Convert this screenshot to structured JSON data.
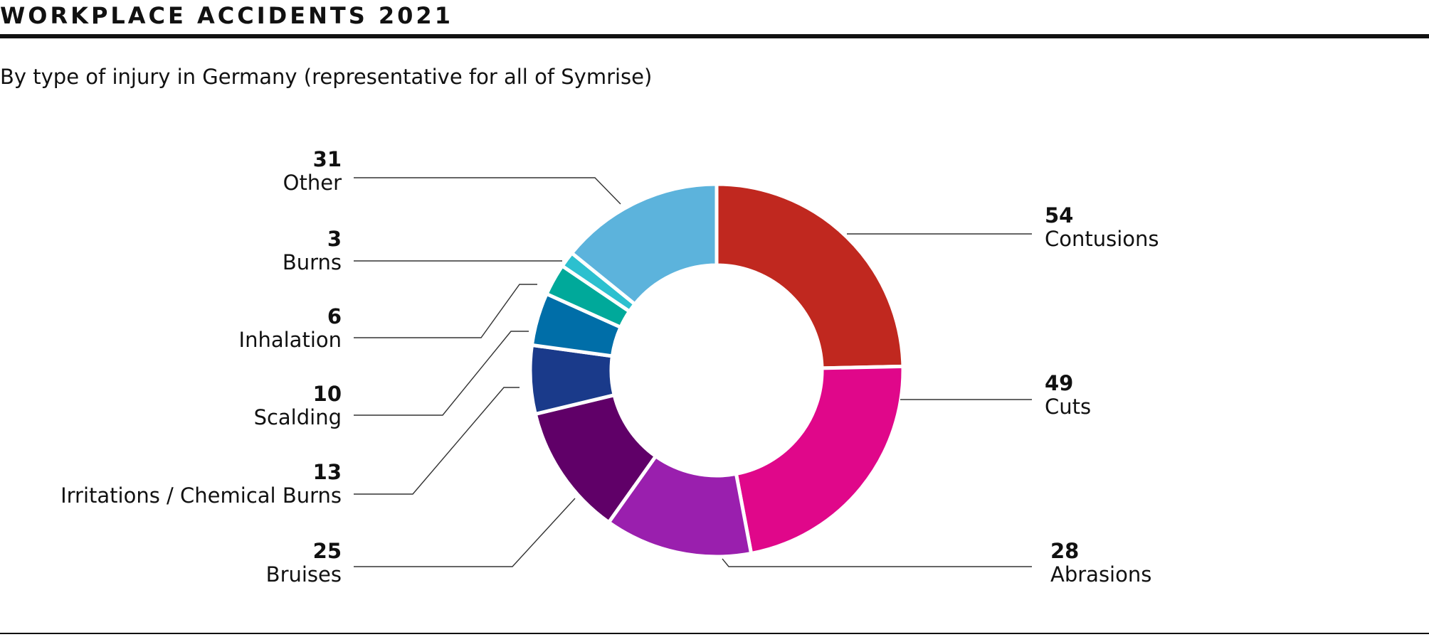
{
  "header": {
    "title": "WORKPLACE ACCIDENTS 2021",
    "subtitle": "By type of injury in Germany (representative for all of Symrise)"
  },
  "chart_data": {
    "type": "pie",
    "donut": true,
    "title": "WORKPLACE ACCIDENTS 2021",
    "subtitle": "By type of injury in Germany (representative for all of Symrise)",
    "categories": [
      "Contusions",
      "Cuts",
      "Abrasions",
      "Bruises",
      "Irritations / Chemical Burns",
      "Scalding",
      "Inhalation",
      "Burns",
      "Other"
    ],
    "values": [
      54,
      49,
      28,
      25,
      13,
      10,
      6,
      3,
      31
    ],
    "colors": [
      "#c0281f",
      "#e0078a",
      "#9a1fae",
      "#600068",
      "#1a3a8a",
      "#006ea8",
      "#00a99a",
      "#2cc0cf",
      "#5cb3dc"
    ],
    "legend": "labels with leader lines"
  }
}
